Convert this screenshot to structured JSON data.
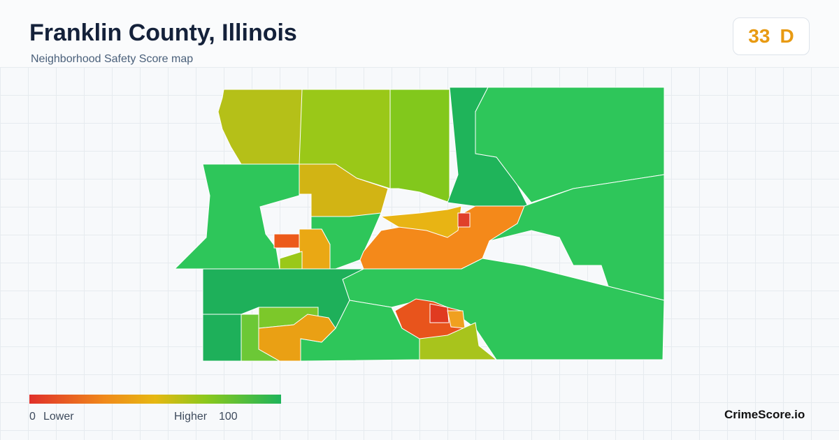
{
  "header": {
    "title": "Franklin County, Illinois",
    "subtitle": "Neighborhood Safety Score map"
  },
  "score": {
    "value": "33",
    "grade": "D"
  },
  "legend": {
    "min": "0",
    "min_label": "Lower",
    "max_label": "Higher",
    "max": "100"
  },
  "brand": "CrimeScore.io"
}
